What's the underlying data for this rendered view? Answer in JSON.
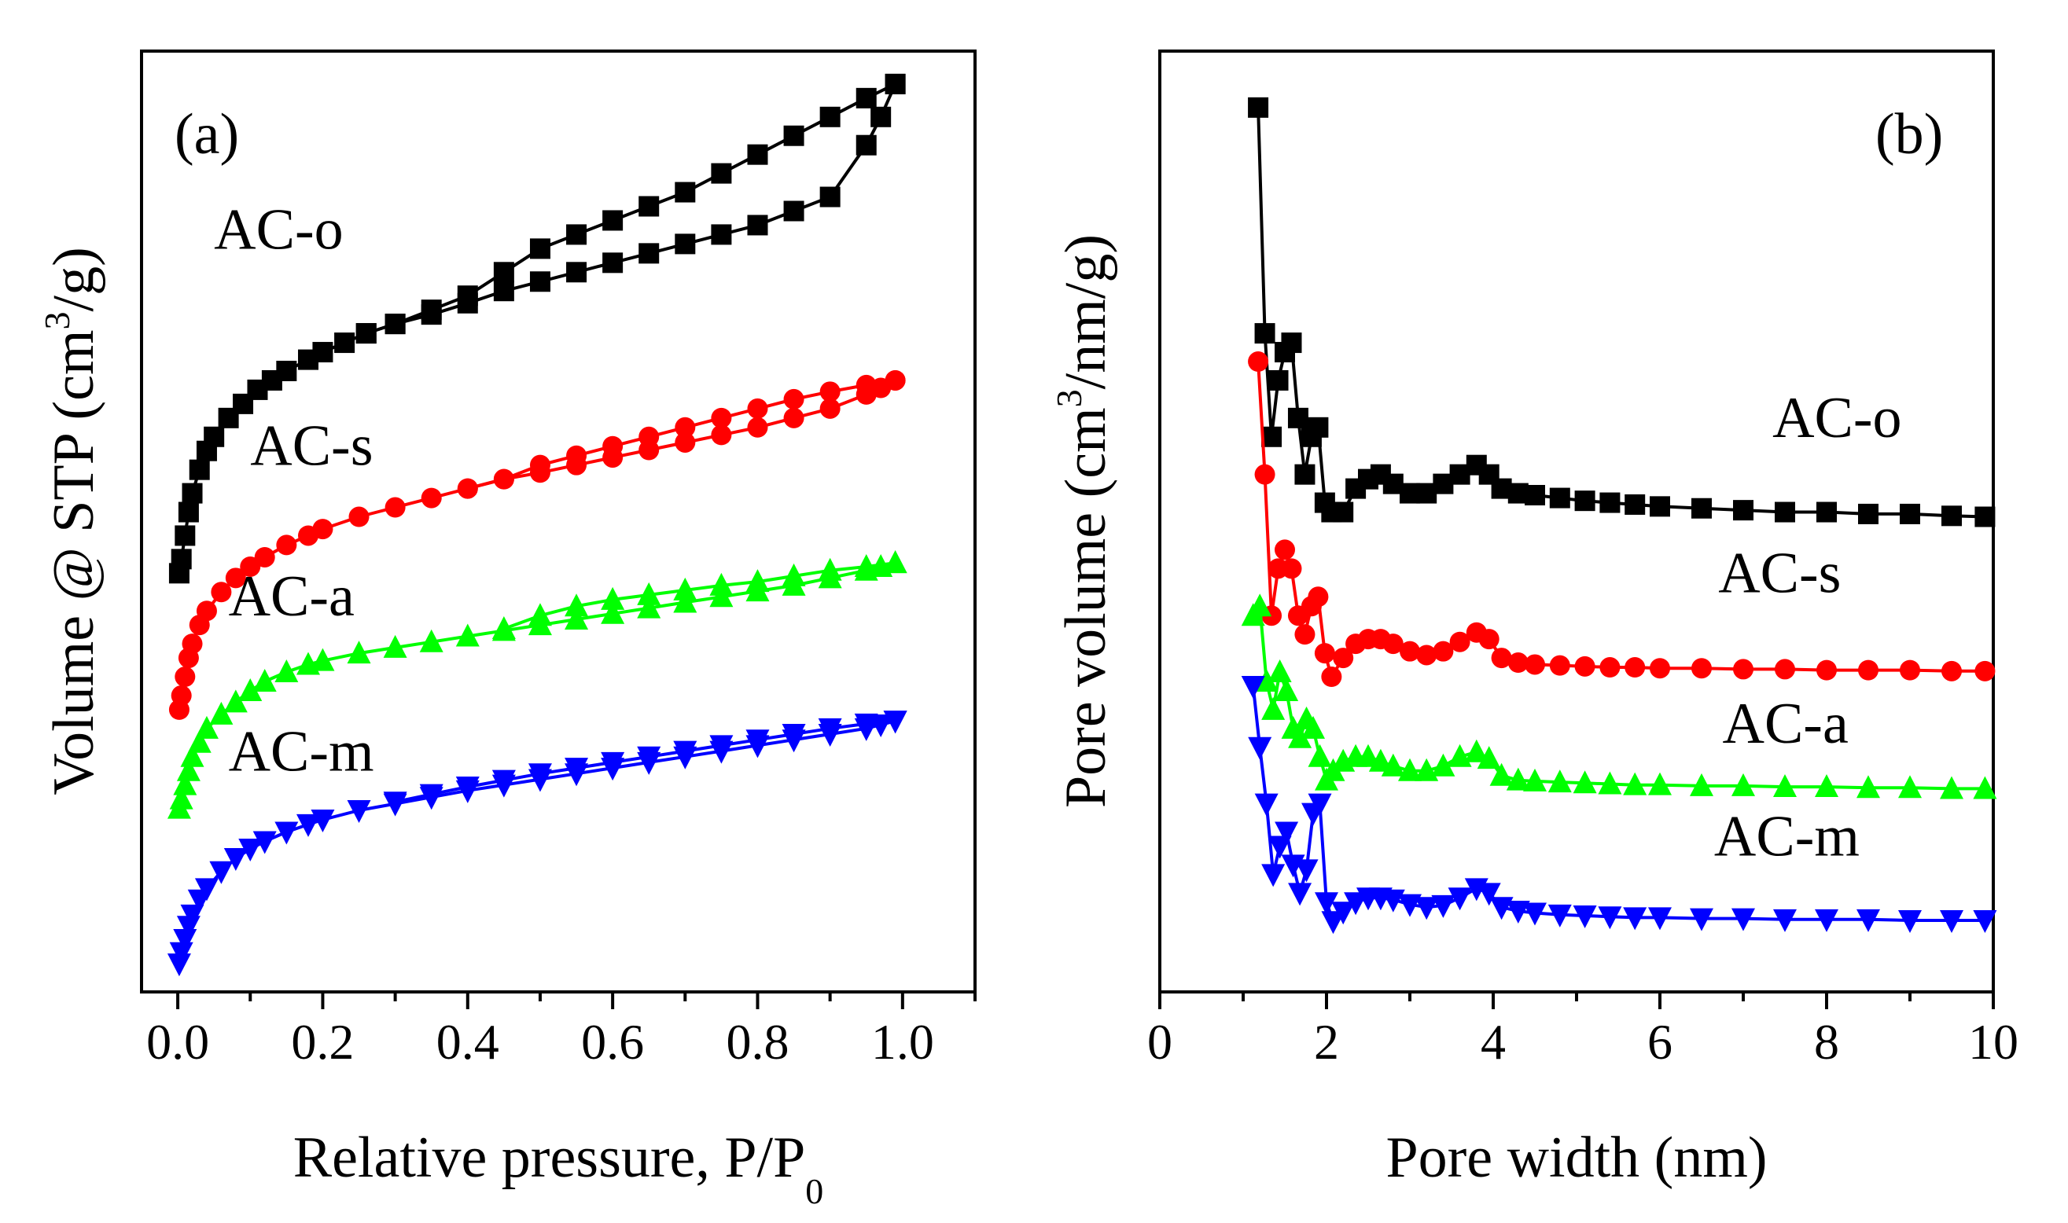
{
  "chart_data": [
    {
      "type": "line",
      "panel": "(a)",
      "xlabel_main": "Relative pressure, P/P",
      "xlabel_sub": "0",
      "ylabel_pre": "Volume @ STP (cm",
      "ylabel_sup": "3",
      "ylabel_post": "/g)",
      "xlim": [
        -0.05,
        1.1
      ],
      "ylim": [
        0,
        10
      ],
      "xticks": [
        "0.0",
        "0.2",
        "0.4",
        "0.6",
        "0.8",
        "1.0"
      ],
      "xtick_values": [
        0,
        0.2,
        0.4,
        0.6,
        0.8,
        1.0
      ],
      "y_ticklabels_shown": false,
      "series": [
        {
          "name": "AC-o",
          "color": "#000000",
          "marker": "square",
          "label_at": [
            0.05,
            7.9
          ],
          "adsorption": {
            "x": [
              0.002,
              0.005,
              0.01,
              0.015,
              0.02,
              0.03,
              0.04,
              0.05,
              0.07,
              0.09,
              0.11,
              0.13,
              0.15,
              0.18,
              0.2,
              0.23,
              0.26,
              0.3,
              0.35,
              0.4,
              0.45,
              0.5,
              0.55,
              0.6,
              0.65,
              0.7,
              0.75,
              0.8,
              0.85,
              0.9,
              0.95,
              0.97,
              0.99
            ],
            "y": [
              4.45,
              4.6,
              4.85,
              5.1,
              5.3,
              5.55,
              5.75,
              5.9,
              6.1,
              6.25,
              6.4,
              6.5,
              6.6,
              6.72,
              6.8,
              6.9,
              7.0,
              7.1,
              7.2,
              7.32,
              7.45,
              7.55,
              7.65,
              7.75,
              7.85,
              7.95,
              8.05,
              8.15,
              8.3,
              8.45,
              9.0,
              9.3,
              9.65
            ]
          },
          "desorption": {
            "x": [
              0.99,
              0.95,
              0.9,
              0.85,
              0.8,
              0.75,
              0.7,
              0.65,
              0.6,
              0.55,
              0.5,
              0.45,
              0.4,
              0.35,
              0.3,
              0.26
            ],
            "y": [
              9.65,
              9.5,
              9.3,
              9.1,
              8.9,
              8.7,
              8.5,
              8.35,
              8.2,
              8.05,
              7.9,
              7.65,
              7.4,
              7.25,
              7.1,
              7.0
            ]
          }
        },
        {
          "name": "AC-s",
          "color": "#ff0000",
          "marker": "circle",
          "label_at": [
            0.1,
            5.6
          ],
          "adsorption": {
            "x": [
              0.002,
              0.005,
              0.01,
              0.015,
              0.02,
              0.03,
              0.04,
              0.06,
              0.08,
              0.1,
              0.12,
              0.15,
              0.18,
              0.2,
              0.25,
              0.3,
              0.35,
              0.4,
              0.45,
              0.5,
              0.55,
              0.6,
              0.65,
              0.7,
              0.75,
              0.8,
              0.85,
              0.9,
              0.95,
              0.97,
              0.99
            ],
            "y": [
              3.0,
              3.15,
              3.35,
              3.55,
              3.7,
              3.9,
              4.05,
              4.25,
              4.4,
              4.52,
              4.62,
              4.75,
              4.85,
              4.92,
              5.05,
              5.15,
              5.25,
              5.35,
              5.45,
              5.52,
              5.6,
              5.68,
              5.76,
              5.84,
              5.92,
              6.0,
              6.1,
              6.2,
              6.35,
              6.42,
              6.5
            ]
          },
          "desorption": {
            "x": [
              0.99,
              0.95,
              0.9,
              0.85,
              0.8,
              0.75,
              0.7,
              0.65,
              0.6,
              0.55,
              0.5,
              0.45,
              0.4
            ],
            "y": [
              6.5,
              6.45,
              6.38,
              6.3,
              6.2,
              6.1,
              6.0,
              5.9,
              5.8,
              5.7,
              5.6,
              5.45,
              5.35
            ]
          }
        },
        {
          "name": "AC-a",
          "color": "#00ff00",
          "marker": "triangle-up",
          "label_at": [
            0.07,
            4.0
          ],
          "adsorption": {
            "x": [
              0.002,
              0.005,
              0.01,
              0.015,
              0.02,
              0.03,
              0.04,
              0.06,
              0.08,
              0.1,
              0.12,
              0.15,
              0.18,
              0.2,
              0.25,
              0.3,
              0.35,
              0.4,
              0.45,
              0.5,
              0.55,
              0.6,
              0.65,
              0.7,
              0.75,
              0.8,
              0.85,
              0.9,
              0.95,
              0.97,
              0.99
            ],
            "y": [
              1.95,
              2.05,
              2.2,
              2.35,
              2.5,
              2.65,
              2.8,
              2.95,
              3.08,
              3.2,
              3.3,
              3.4,
              3.48,
              3.52,
              3.6,
              3.66,
              3.72,
              3.78,
              3.84,
              3.9,
              3.96,
              4.02,
              4.08,
              4.14,
              4.2,
              4.26,
              4.32,
              4.4,
              4.48,
              4.52,
              4.56
            ]
          },
          "desorption": {
            "x": [
              0.99,
              0.95,
              0.9,
              0.85,
              0.8,
              0.75,
              0.7,
              0.65,
              0.6,
              0.55,
              0.5,
              0.45
            ],
            "y": [
              4.56,
              4.52,
              4.48,
              4.42,
              4.36,
              4.32,
              4.27,
              4.22,
              4.17,
              4.1,
              4.0,
              3.86
            ]
          }
        },
        {
          "name": "AC-m",
          "color": "#0000ff",
          "marker": "triangle-down",
          "label_at": [
            0.07,
            2.35
          ],
          "adsorption": {
            "x": [
              0.002,
              0.005,
              0.01,
              0.015,
              0.02,
              0.03,
              0.04,
              0.06,
              0.08,
              0.1,
              0.12,
              0.15,
              0.18,
              0.2,
              0.25,
              0.3,
              0.35,
              0.4,
              0.45,
              0.5,
              0.55,
              0.6,
              0.65,
              0.7,
              0.75,
              0.8,
              0.85,
              0.9,
              0.95,
              0.97,
              0.99
            ],
            "y": [
              0.3,
              0.42,
              0.56,
              0.7,
              0.82,
              0.98,
              1.1,
              1.28,
              1.42,
              1.52,
              1.6,
              1.7,
              1.78,
              1.83,
              1.93,
              2.0,
              2.07,
              2.14,
              2.2,
              2.26,
              2.32,
              2.38,
              2.44,
              2.5,
              2.56,
              2.62,
              2.68,
              2.74,
              2.8,
              2.84,
              2.88
            ]
          },
          "desorption": {
            "x": [
              0.99,
              0.95,
              0.9,
              0.85,
              0.8,
              0.75,
              0.7,
              0.65,
              0.6,
              0.55,
              0.5,
              0.45,
              0.4,
              0.35,
              0.3
            ],
            "y": [
              2.88,
              2.85,
              2.8,
              2.74,
              2.68,
              2.62,
              2.56,
              2.5,
              2.44,
              2.38,
              2.32,
              2.25,
              2.18,
              2.1,
              2.02
            ]
          }
        }
      ]
    },
    {
      "type": "line",
      "panel": "(b)",
      "xlabel": "Pore width (nm)",
      "ylabel_pre": "Pore volume (cm",
      "ylabel_sup": "3",
      "ylabel_post": "/nm/g)",
      "xlim": [
        0,
        10
      ],
      "ylim": [
        0,
        10
      ],
      "xticks": [
        "0",
        "2",
        "4",
        "6",
        "8",
        "10"
      ],
      "xtick_values": [
        0,
        2,
        4,
        6,
        8,
        10
      ],
      "y_ticklabels_shown": false,
      "series": [
        {
          "name": "AC-o",
          "color": "#000000",
          "marker": "square",
          "label_at": [
            7.35,
            5.9
          ],
          "x": [
            1.18,
            1.26,
            1.34,
            1.42,
            1.5,
            1.58,
            1.66,
            1.74,
            1.82,
            1.9,
            1.98,
            2.06,
            2.2,
            2.35,
            2.5,
            2.65,
            2.8,
            3.0,
            3.2,
            3.4,
            3.6,
            3.8,
            3.95,
            4.1,
            4.3,
            4.5,
            4.8,
            5.1,
            5.4,
            5.7,
            6.0,
            6.5,
            7.0,
            7.5,
            8.0,
            8.5,
            9.0,
            9.5,
            9.9
          ],
          "y": [
            9.4,
            7.0,
            5.9,
            6.5,
            6.8,
            6.9,
            6.1,
            5.5,
            5.9,
            6.0,
            5.2,
            5.1,
            5.1,
            5.35,
            5.45,
            5.5,
            5.4,
            5.3,
            5.3,
            5.4,
            5.5,
            5.6,
            5.5,
            5.35,
            5.3,
            5.28,
            5.25,
            5.22,
            5.2,
            5.18,
            5.16,
            5.14,
            5.12,
            5.1,
            5.1,
            5.08,
            5.08,
            5.06,
            5.05
          ]
        },
        {
          "name": "AC-s",
          "color": "#ff0000",
          "marker": "circle",
          "label_at": [
            6.7,
            4.25
          ],
          "x": [
            1.18,
            1.26,
            1.34,
            1.42,
            1.5,
            1.58,
            1.66,
            1.74,
            1.82,
            1.9,
            1.98,
            2.06,
            2.2,
            2.35,
            2.5,
            2.65,
            2.8,
            3.0,
            3.2,
            3.4,
            3.6,
            3.8,
            3.95,
            4.1,
            4.3,
            4.5,
            4.8,
            5.1,
            5.4,
            5.7,
            6.0,
            6.5,
            7.0,
            7.5,
            8.0,
            8.5,
            9.0,
            9.5,
            9.9
          ],
          "y": [
            6.7,
            5.5,
            4.0,
            4.5,
            4.7,
            4.5,
            4.0,
            3.8,
            4.1,
            4.2,
            3.6,
            3.35,
            3.55,
            3.7,
            3.75,
            3.75,
            3.7,
            3.62,
            3.58,
            3.62,
            3.72,
            3.82,
            3.75,
            3.55,
            3.5,
            3.48,
            3.47,
            3.46,
            3.45,
            3.45,
            3.44,
            3.44,
            3.43,
            3.43,
            3.42,
            3.42,
            3.42,
            3.41,
            3.41
          ]
        },
        {
          "name": "AC-a",
          "color": "#00ff00",
          "marker": "triangle-up",
          "label_at": [
            6.75,
            2.65
          ],
          "x": [
            1.12,
            1.2,
            1.28,
            1.36,
            1.44,
            1.52,
            1.6,
            1.68,
            1.76,
            1.84,
            1.92,
            2.0,
            2.08,
            2.2,
            2.35,
            2.5,
            2.65,
            2.8,
            3.0,
            3.2,
            3.4,
            3.6,
            3.8,
            3.95,
            4.1,
            4.3,
            4.5,
            4.8,
            5.1,
            5.4,
            5.7,
            6.0,
            6.5,
            7.0,
            7.5,
            8.0,
            8.5,
            9.0,
            9.5,
            9.9
          ],
          "y": [
            4.0,
            4.1,
            3.3,
            3.0,
            3.4,
            3.2,
            2.8,
            2.7,
            2.9,
            2.8,
            2.5,
            2.25,
            2.35,
            2.45,
            2.5,
            2.5,
            2.45,
            2.4,
            2.35,
            2.35,
            2.4,
            2.5,
            2.55,
            2.48,
            2.3,
            2.25,
            2.24,
            2.23,
            2.22,
            2.21,
            2.2,
            2.2,
            2.19,
            2.19,
            2.18,
            2.18,
            2.17,
            2.17,
            2.16,
            2.16
          ]
        },
        {
          "name": "AC-m",
          "color": "#0000ff",
          "marker": "triangle-down",
          "label_at": [
            6.65,
            1.45
          ],
          "x": [
            1.12,
            1.2,
            1.28,
            1.36,
            1.44,
            1.52,
            1.6,
            1.68,
            1.76,
            1.84,
            1.92,
            2.0,
            2.08,
            2.2,
            2.35,
            2.5,
            2.65,
            2.8,
            3.0,
            3.2,
            3.4,
            3.6,
            3.8,
            3.95,
            4.1,
            4.3,
            4.5,
            4.8,
            5.1,
            5.4,
            5.7,
            6.0,
            6.5,
            7.0,
            7.5,
            8.0,
            8.5,
            9.0,
            9.5,
            9.9
          ],
          "y": [
            3.25,
            2.6,
            2.0,
            1.25,
            1.55,
            1.7,
            1.35,
            1.05,
            1.3,
            1.9,
            2.0,
            0.95,
            0.75,
            0.85,
            0.95,
            1.0,
            1.0,
            0.98,
            0.93,
            0.9,
            0.92,
            1.0,
            1.1,
            1.05,
            0.9,
            0.86,
            0.84,
            0.82,
            0.81,
            0.8,
            0.79,
            0.79,
            0.78,
            0.78,
            0.77,
            0.77,
            0.77,
            0.76,
            0.76,
            0.76
          ]
        }
      ]
    }
  ]
}
